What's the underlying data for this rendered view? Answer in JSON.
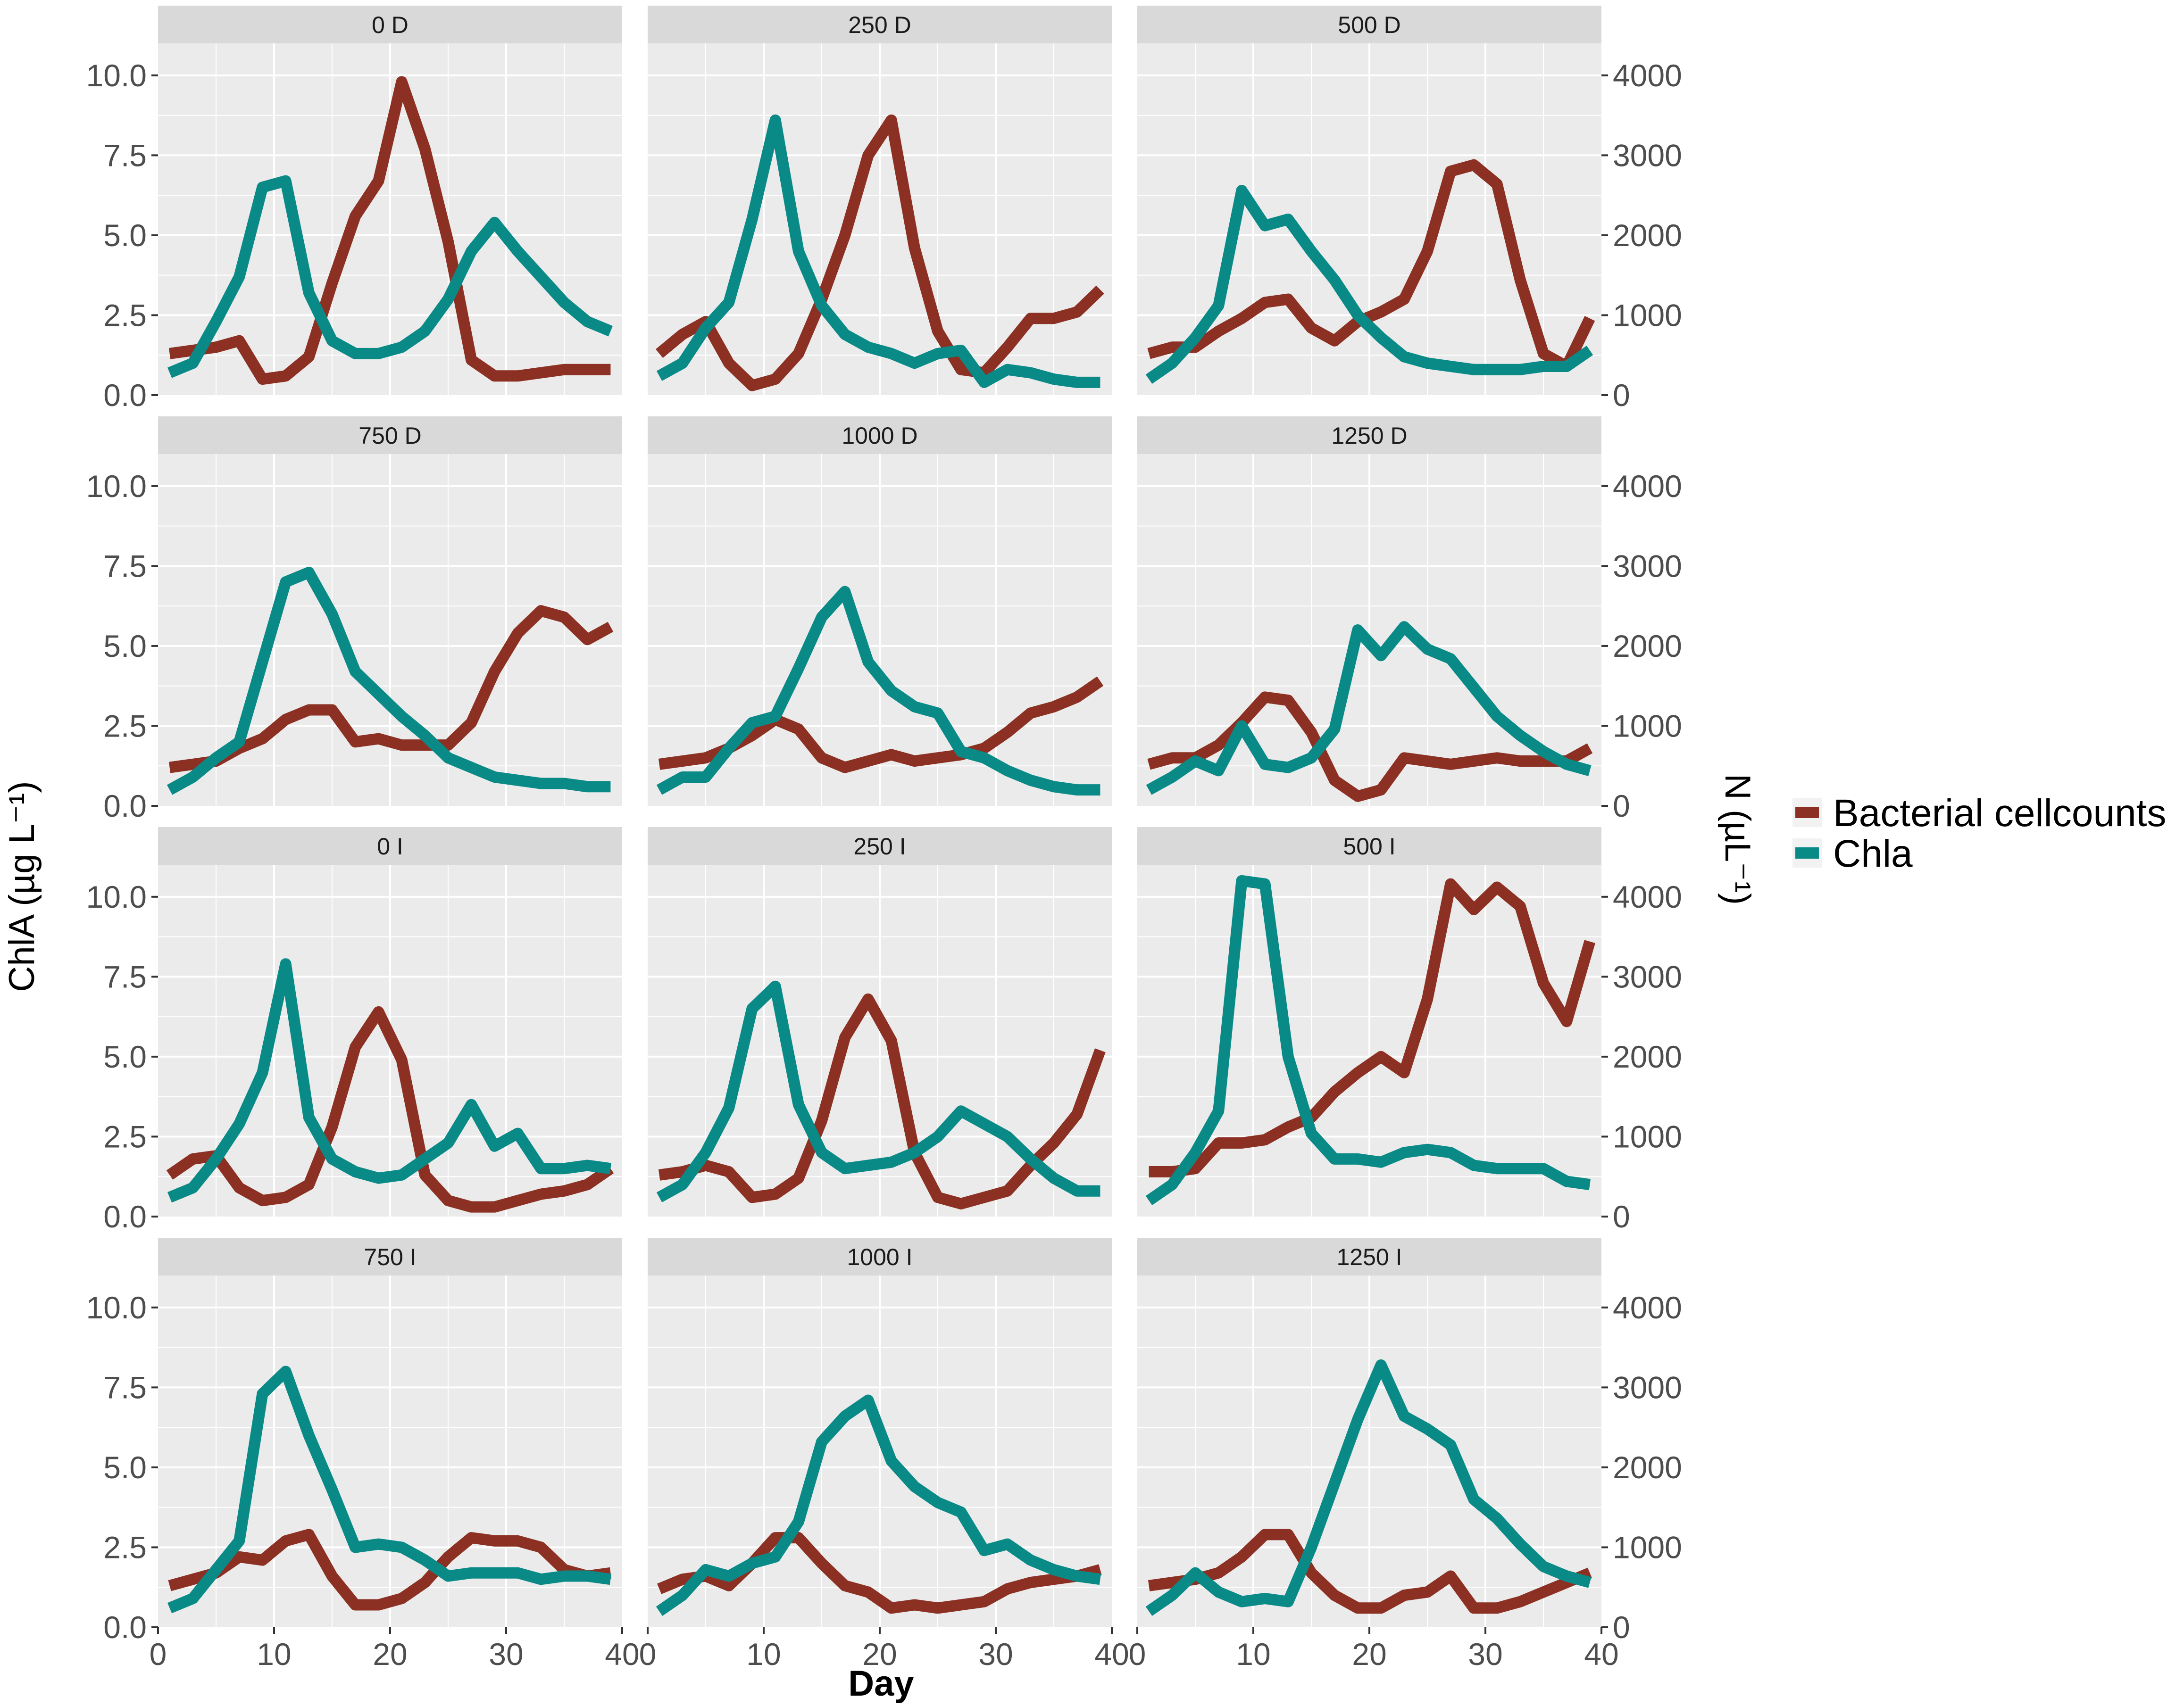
{
  "chart_data": {
    "type": "line",
    "layout": "faceted grid, 4 rows x 3 columns, dual y-axis",
    "xlabel": "Day",
    "ylabel_left": "ChlA (µg L⁻¹)",
    "ylabel_right": "N (µL⁻¹)",
    "xlim": [
      0,
      40
    ],
    "ylim_left": [
      0,
      11
    ],
    "ylim_right": [
      0,
      4400
    ],
    "x_ticks": [
      "0",
      "10",
      "20",
      "30",
      "40"
    ],
    "y_ticks_left": [
      "0.0",
      "2.5",
      "5.0",
      "7.5",
      "10.0"
    ],
    "y_ticks_right": [
      "0",
      "1000",
      "2000",
      "3000",
      "4000"
    ],
    "legend": {
      "position": "right",
      "entries": [
        {
          "name": "Bacterial cellcounts",
          "color": "#8b3022"
        },
        {
          "name": "Chla",
          "color": "#0a8a87"
        }
      ]
    },
    "note": "Both series plotted in left-axis (ChlA) units; Bacterial cellcounts in N = value x 400.",
    "panels": [
      {
        "title": "0 D",
        "x": [
          1,
          3,
          5,
          7,
          9,
          11,
          13,
          15,
          17,
          19,
          21,
          23,
          25,
          27,
          29,
          31,
          33,
          35,
          37,
          39
        ],
        "chla": [
          0.7,
          1.0,
          2.3,
          3.7,
          6.5,
          6.7,
          3.2,
          1.7,
          1.3,
          1.3,
          1.5,
          2.0,
          3.0,
          4.5,
          5.4,
          4.5,
          3.7,
          2.9,
          2.3,
          2.0
        ],
        "bacterial": [
          1.3,
          1.4,
          1.5,
          1.7,
          0.5,
          0.6,
          1.2,
          3.5,
          5.6,
          6.7,
          9.8,
          7.7,
          4.8,
          1.1,
          0.6,
          0.6,
          0.7,
          0.8,
          0.8,
          0.8
        ]
      },
      {
        "title": "250 D",
        "x": [
          1,
          3,
          5,
          7,
          9,
          11,
          13,
          15,
          17,
          19,
          21,
          23,
          25,
          27,
          29,
          31,
          33,
          35,
          37,
          39
        ],
        "chla": [
          0.6,
          1.0,
          2.1,
          2.9,
          5.5,
          8.6,
          4.5,
          2.8,
          1.9,
          1.5,
          1.3,
          1.0,
          1.3,
          1.4,
          0.4,
          0.8,
          0.7,
          0.5,
          0.4,
          0.4
        ],
        "bacterial": [
          1.3,
          1.9,
          2.3,
          1.0,
          0.3,
          0.5,
          1.3,
          3.0,
          5.0,
          7.5,
          8.6,
          4.6,
          2.0,
          0.8,
          0.7,
          1.5,
          2.4,
          2.4,
          2.6,
          3.3
        ]
      },
      {
        "title": "500 D",
        "x": [
          1,
          3,
          5,
          7,
          9,
          11,
          13,
          15,
          17,
          19,
          21,
          23,
          25,
          27,
          29,
          31,
          33,
          35,
          37,
          39
        ],
        "chla": [
          0.5,
          1.0,
          1.8,
          2.8,
          6.4,
          5.3,
          5.5,
          4.5,
          3.6,
          2.5,
          1.8,
          1.2,
          1.0,
          0.9,
          0.8,
          0.8,
          0.8,
          0.9,
          0.9,
          1.4
        ],
        "bacterial": [
          1.3,
          1.5,
          1.5,
          2.0,
          2.4,
          2.9,
          3.0,
          2.1,
          1.7,
          2.3,
          2.6,
          3.0,
          4.5,
          7.0,
          7.2,
          6.6,
          3.6,
          1.3,
          0.9,
          2.4
        ]
      },
      {
        "title": "750 D",
        "x": [
          1,
          3,
          5,
          7,
          9,
          11,
          13,
          15,
          17,
          19,
          21,
          23,
          25,
          27,
          29,
          31,
          33,
          35,
          37,
          39
        ],
        "chla": [
          0.5,
          0.9,
          1.5,
          2.0,
          4.5,
          7.0,
          7.3,
          6.0,
          4.2,
          3.5,
          2.8,
          2.2,
          1.5,
          1.2,
          0.9,
          0.8,
          0.7,
          0.7,
          0.6,
          0.6
        ],
        "bacterial": [
          1.2,
          1.3,
          1.4,
          1.8,
          2.1,
          2.7,
          3.0,
          3.0,
          2.0,
          2.1,
          1.9,
          1.9,
          1.9,
          2.6,
          4.2,
          5.4,
          6.1,
          5.9,
          5.2,
          5.6
        ]
      },
      {
        "title": "1000 D",
        "x": [
          1,
          3,
          5,
          7,
          9,
          11,
          13,
          15,
          17,
          19,
          21,
          23,
          25,
          27,
          29,
          31,
          33,
          35,
          37,
          39
        ],
        "chla": [
          0.5,
          0.9,
          0.9,
          1.8,
          2.6,
          2.8,
          4.3,
          5.9,
          6.7,
          4.5,
          3.6,
          3.1,
          2.9,
          1.7,
          1.5,
          1.1,
          0.8,
          0.6,
          0.5,
          0.5
        ],
        "bacterial": [
          1.3,
          1.4,
          1.5,
          1.8,
          2.2,
          2.7,
          2.4,
          1.5,
          1.2,
          1.4,
          1.6,
          1.4,
          1.5,
          1.6,
          1.8,
          2.3,
          2.9,
          3.1,
          3.4,
          3.9
        ]
      },
      {
        "title": "1250 D",
        "x": [
          1,
          3,
          5,
          7,
          9,
          11,
          13,
          15,
          17,
          19,
          21,
          23,
          25,
          27,
          29,
          31,
          33,
          35,
          37,
          39
        ],
        "chla": [
          0.5,
          0.9,
          1.4,
          1.1,
          2.5,
          1.3,
          1.2,
          1.5,
          2.4,
          5.5,
          4.7,
          5.6,
          4.9,
          4.6,
          3.7,
          2.8,
          2.2,
          1.7,
          1.3,
          1.1
        ],
        "bacterial": [
          1.3,
          1.5,
          1.5,
          1.9,
          2.6,
          3.4,
          3.3,
          2.3,
          0.8,
          0.3,
          0.5,
          1.5,
          1.4,
          1.3,
          1.4,
          1.5,
          1.4,
          1.4,
          1.4,
          1.8
        ]
      },
      {
        "title": "0 I",
        "x": [
          1,
          3,
          5,
          7,
          9,
          11,
          13,
          15,
          17,
          19,
          21,
          23,
          25,
          27,
          29,
          31,
          33,
          35,
          37,
          39
        ],
        "chla": [
          0.6,
          0.9,
          1.8,
          2.9,
          4.5,
          7.9,
          3.1,
          1.8,
          1.4,
          1.2,
          1.3,
          1.8,
          2.3,
          3.5,
          2.2,
          2.6,
          1.5,
          1.5,
          1.6,
          1.5
        ],
        "bacterial": [
          1.3,
          1.8,
          1.9,
          0.9,
          0.5,
          0.6,
          1.0,
          2.8,
          5.3,
          6.4,
          4.9,
          1.3,
          0.5,
          0.3,
          0.3,
          0.5,
          0.7,
          0.8,
          1.0,
          1.5
        ]
      },
      {
        "title": "250 I",
        "x": [
          1,
          3,
          5,
          7,
          9,
          11,
          13,
          15,
          17,
          19,
          21,
          23,
          25,
          27,
          29,
          31,
          33,
          35,
          37,
          39
        ],
        "chla": [
          0.6,
          1.0,
          2.0,
          3.4,
          6.5,
          7.2,
          3.5,
          2.0,
          1.5,
          1.6,
          1.7,
          2.0,
          2.5,
          3.3,
          2.9,
          2.5,
          1.8,
          1.2,
          0.8,
          0.8
        ],
        "bacterial": [
          1.3,
          1.4,
          1.6,
          1.4,
          0.6,
          0.7,
          1.2,
          3.0,
          5.6,
          6.8,
          5.5,
          2.0,
          0.6,
          0.4,
          0.6,
          0.8,
          1.6,
          2.3,
          3.2,
          5.2
        ]
      },
      {
        "title": "500 I",
        "x": [
          1,
          3,
          5,
          7,
          9,
          11,
          13,
          15,
          17,
          19,
          21,
          23,
          25,
          27,
          29,
          31,
          33,
          35,
          37,
          39
        ],
        "chla": [
          0.5,
          1.0,
          2.0,
          3.3,
          10.5,
          10.4,
          5.0,
          2.6,
          1.8,
          1.8,
          1.7,
          2.0,
          2.1,
          2.0,
          1.6,
          1.5,
          1.5,
          1.5,
          1.1,
          1.0
        ],
        "bacterial": [
          1.4,
          1.4,
          1.5,
          2.3,
          2.3,
          2.4,
          2.8,
          3.1,
          3.9,
          4.5,
          5.0,
          4.5,
          6.8,
          10.4,
          9.6,
          10.3,
          9.7,
          7.3,
          6.1,
          8.6
        ]
      },
      {
        "title": "750 I",
        "x": [
          1,
          3,
          5,
          7,
          9,
          11,
          13,
          15,
          17,
          19,
          21,
          23,
          25,
          27,
          29,
          31,
          33,
          35,
          37,
          39
        ],
        "chla": [
          0.6,
          0.9,
          1.8,
          2.7,
          7.3,
          8.0,
          6.0,
          4.3,
          2.5,
          2.6,
          2.5,
          2.1,
          1.6,
          1.7,
          1.7,
          1.7,
          1.5,
          1.6,
          1.6,
          1.5
        ],
        "bacterial": [
          1.3,
          1.5,
          1.7,
          2.2,
          2.1,
          2.7,
          2.9,
          1.6,
          0.7,
          0.7,
          0.9,
          1.4,
          2.2,
          2.8,
          2.7,
          2.7,
          2.5,
          1.8,
          1.6,
          1.7
        ]
      },
      {
        "title": "1000 I",
        "x": [
          1,
          3,
          5,
          7,
          9,
          11,
          13,
          15,
          17,
          19,
          21,
          23,
          25,
          27,
          29,
          31,
          33,
          35,
          37,
          39
        ],
        "chla": [
          0.5,
          1.0,
          1.8,
          1.6,
          2.0,
          2.2,
          3.3,
          5.8,
          6.6,
          7.1,
          5.2,
          4.4,
          3.9,
          3.6,
          2.4,
          2.6,
          2.1,
          1.8,
          1.6,
          1.5
        ],
        "bacterial": [
          1.2,
          1.5,
          1.6,
          1.3,
          2.0,
          2.8,
          2.8,
          2.0,
          1.3,
          1.1,
          0.6,
          0.7,
          0.6,
          0.7,
          0.8,
          1.2,
          1.4,
          1.5,
          1.6,
          1.8
        ]
      },
      {
        "title": "1250 I",
        "x": [
          1,
          3,
          5,
          7,
          9,
          11,
          13,
          15,
          17,
          19,
          21,
          23,
          25,
          27,
          29,
          31,
          33,
          35,
          37,
          39
        ],
        "chla": [
          0.5,
          1.0,
          1.7,
          1.1,
          0.8,
          0.9,
          0.8,
          2.5,
          4.5,
          6.5,
          8.2,
          6.6,
          6.2,
          5.7,
          4.0,
          3.4,
          2.6,
          1.9,
          1.6,
          1.4
        ],
        "bacterial": [
          1.3,
          1.4,
          1.5,
          1.7,
          2.2,
          2.9,
          2.9,
          1.7,
          1.0,
          0.6,
          0.6,
          1.0,
          1.1,
          1.6,
          0.6,
          0.6,
          0.8,
          1.1,
          1.4,
          1.7
        ]
      }
    ]
  }
}
